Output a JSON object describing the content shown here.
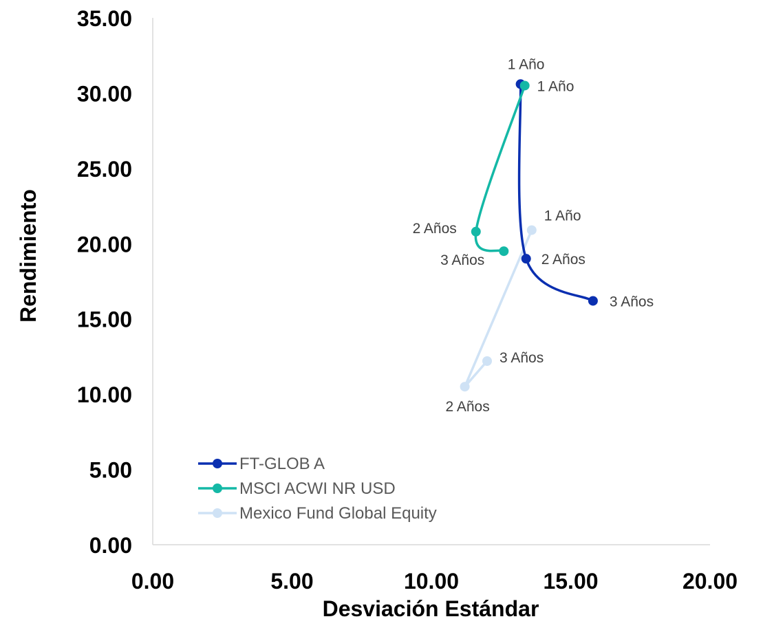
{
  "chart_data": {
    "type": "scatter",
    "title": "",
    "xlabel": "Desviación Estándar",
    "ylabel": "Rendimiento",
    "xlim": [
      0,
      20
    ],
    "ylim": [
      0,
      35
    ],
    "xticks": [
      "0.00",
      "5.00",
      "10.00",
      "15.00",
      "20.00"
    ],
    "yticks": [
      "0.00",
      "5.00",
      "10.00",
      "15.00",
      "20.00",
      "25.00",
      "30.00",
      "35.00"
    ],
    "grid": false,
    "legend_position": "bottom-left",
    "series": [
      {
        "name": "FT-GLOB A",
        "color": "#0A2FB0",
        "points": [
          {
            "label": "1 Año",
            "x": 13.2,
            "y": 30.6
          },
          {
            "label": "2 Años",
            "x": 13.4,
            "y": 19.0
          },
          {
            "label": "3 Años",
            "x": 15.8,
            "y": 16.2
          }
        ]
      },
      {
        "name": "MSCI ACWI NR USD",
        "color": "#14B8A6",
        "points": [
          {
            "label": "1 Año",
            "x": 13.35,
            "y": 30.5
          },
          {
            "label": "2 Años",
            "x": 11.6,
            "y": 20.8
          },
          {
            "label": "3 Años",
            "x": 12.6,
            "y": 19.5
          }
        ]
      },
      {
        "name": "Mexico Fund Global Equity",
        "color": "#CFE2F5",
        "points": [
          {
            "label": "1 Año",
            "x": 13.6,
            "y": 20.9
          },
          {
            "label": "2 Años",
            "x": 11.2,
            "y": 10.5
          },
          {
            "label": "3 Años",
            "x": 12.0,
            "y": 12.2
          }
        ]
      }
    ]
  }
}
